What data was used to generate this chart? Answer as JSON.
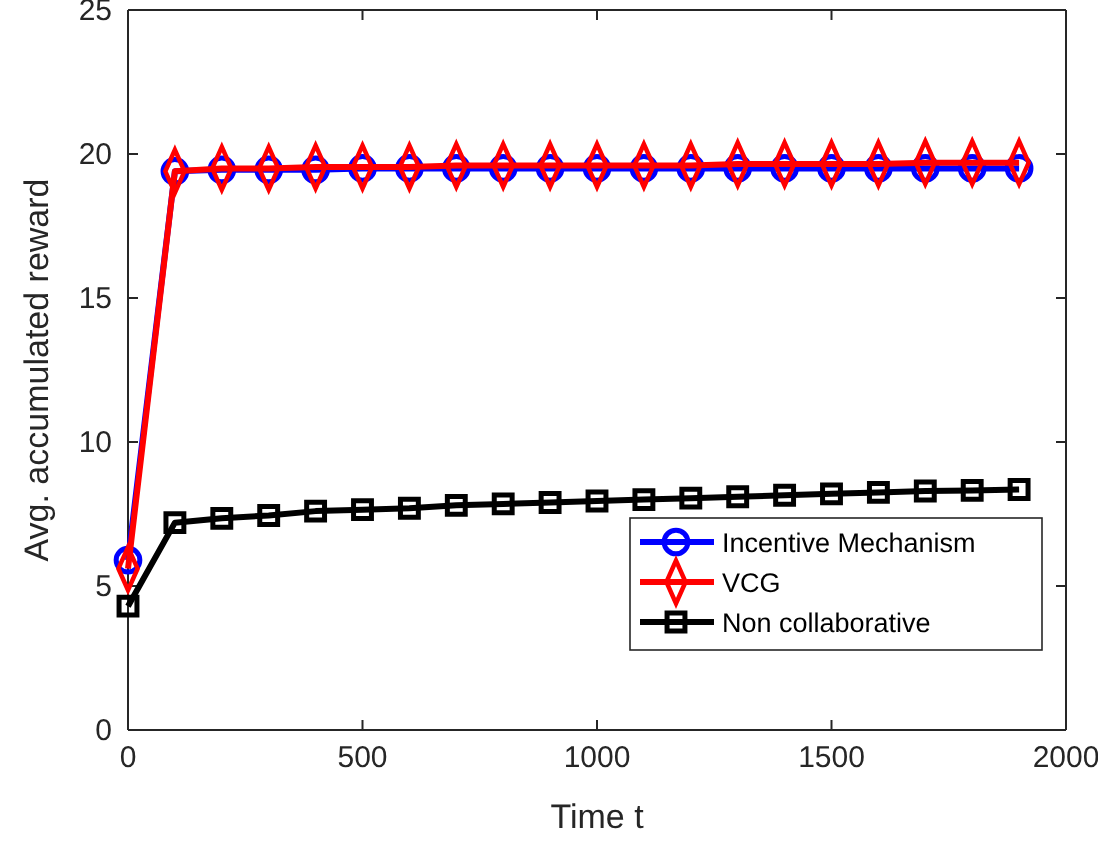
{
  "chart_data": {
    "type": "line",
    "xlabel": "Time t",
    "ylabel": "Avg. accumulated reward",
    "x": [
      0,
      100,
      200,
      300,
      400,
      500,
      600,
      700,
      800,
      900,
      1000,
      1100,
      1200,
      1300,
      1400,
      1500,
      1600,
      1700,
      1800,
      1900
    ],
    "series": [
      {
        "name": "Incentive Mechanism",
        "color": "#0000ff",
        "marker": "circle",
        "values": [
          5.9,
          19.4,
          19.45,
          19.45,
          19.45,
          19.5,
          19.5,
          19.5,
          19.5,
          19.5,
          19.5,
          19.5,
          19.5,
          19.5,
          19.5,
          19.5,
          19.5,
          19.5,
          19.5,
          19.5
        ]
      },
      {
        "name": "VCG",
        "color": "#ff0000",
        "marker": "diamond",
        "values": [
          5.6,
          19.4,
          19.5,
          19.5,
          19.55,
          19.55,
          19.55,
          19.6,
          19.6,
          19.6,
          19.6,
          19.6,
          19.6,
          19.65,
          19.65,
          19.65,
          19.65,
          19.7,
          19.7,
          19.7
        ]
      },
      {
        "name": "Non collaborative",
        "color": "#000000",
        "marker": "square",
        "values": [
          4.3,
          7.2,
          7.35,
          7.45,
          7.6,
          7.65,
          7.7,
          7.8,
          7.85,
          7.9,
          7.95,
          8.0,
          8.05,
          8.1,
          8.15,
          8.2,
          8.25,
          8.3,
          8.32,
          8.35
        ]
      }
    ],
    "xlim": [
      0,
      2000
    ],
    "xticks": [
      0,
      500,
      1000,
      1500,
      2000
    ],
    "ylim": [
      0,
      25
    ],
    "yticks": [
      0,
      5,
      10,
      15,
      20,
      25
    ],
    "grid": false,
    "legend": "bottom right",
    "line_style": "solid"
  }
}
